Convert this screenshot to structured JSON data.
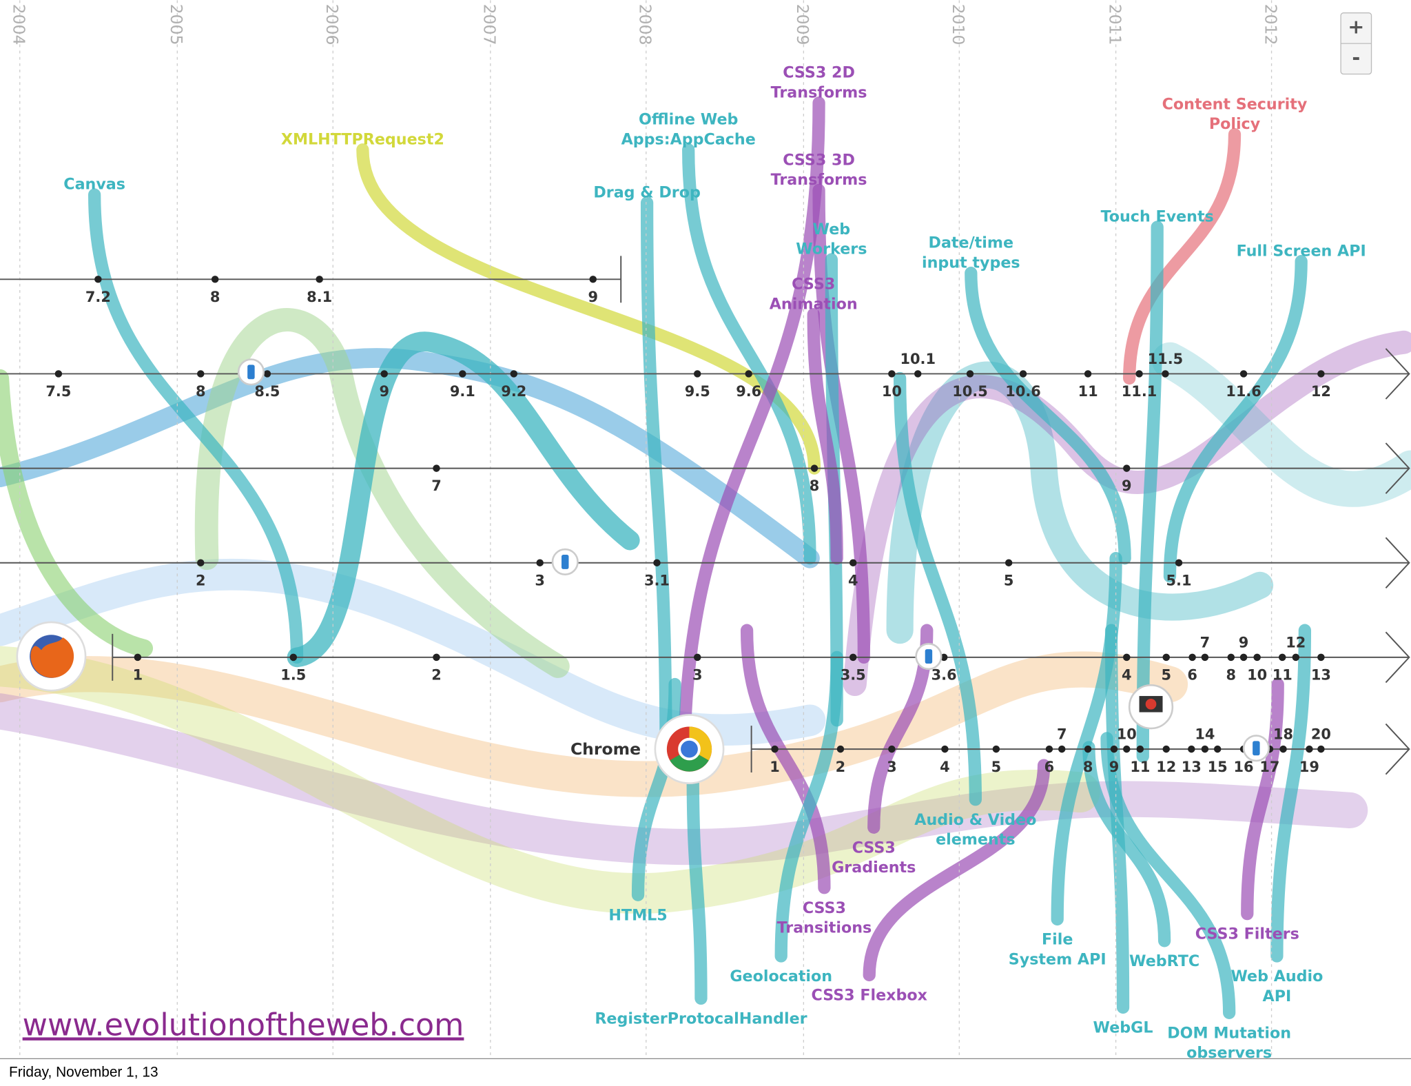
{
  "years": [
    "2004",
    "2005",
    "2006",
    "2007",
    "2008",
    "2009",
    "2010",
    "2011",
    "2012"
  ],
  "timelines": [
    {
      "versions": [
        "7.2",
        "8",
        "8.1",
        "9"
      ]
    },
    {
      "versions": [
        "7.5",
        "8",
        "8.5",
        "9",
        "9.1",
        "9.2",
        "9.5",
        "9.6",
        "10",
        "10.1",
        "10.5",
        "10.6",
        "11",
        "11.1",
        "11.5",
        "11.6",
        "12"
      ]
    },
    {
      "versions": [
        "7",
        "8",
        "9"
      ]
    },
    {
      "versions": [
        "2",
        "3",
        "3.1",
        "4",
        "5",
        "5.1"
      ]
    },
    {
      "versions": [
        "1",
        "1.5",
        "2",
        "3",
        "3.5",
        "3.6",
        "4",
        "5",
        "6",
        "7",
        "8",
        "9",
        "10",
        "11",
        "12",
        "13"
      ]
    },
    {
      "name": "Chrome",
      "versions": [
        "1",
        "2",
        "3",
        "4",
        "5",
        "6",
        "7",
        "8",
        "9",
        "10",
        "11",
        "12",
        "13",
        "14",
        "15",
        "16",
        "17",
        "18",
        "19",
        "20"
      ]
    }
  ],
  "features": [
    {
      "lines": [
        "Canvas"
      ],
      "color": "#3db5c0"
    },
    {
      "lines": [
        "XMLHTTPRequest2"
      ],
      "color": "#d2d83a"
    },
    {
      "lines": [
        "Offline Web",
        "Apps:AppCache"
      ],
      "color": "#3db5c0"
    },
    {
      "lines": [
        "Drag & Drop"
      ],
      "color": "#3db5c0"
    },
    {
      "lines": [
        "CSS3 2D",
        "Transforms"
      ],
      "color": "#9b4fb5"
    },
    {
      "lines": [
        "CSS3 3D",
        "Transforms"
      ],
      "color": "#9b4fb5"
    },
    {
      "lines": [
        "Web",
        "Workers"
      ],
      "color": "#3db5c0"
    },
    {
      "lines": [
        "CSS3",
        "Animation"
      ],
      "color": "#9b4fb5"
    },
    {
      "lines": [
        "Date/time",
        "input types"
      ],
      "color": "#3db5c0"
    },
    {
      "lines": [
        "Content Security",
        "Policy"
      ],
      "color": "#e5707a"
    },
    {
      "lines": [
        "Touch Events"
      ],
      "color": "#3db5c0"
    },
    {
      "lines": [
        "Full Screen API"
      ],
      "color": "#3db5c0"
    },
    {
      "lines": [
        "Audio & Video",
        "elements"
      ],
      "color": "#3db5c0"
    },
    {
      "lines": [
        "CSS3",
        "Gradients"
      ],
      "color": "#9b4fb5"
    },
    {
      "lines": [
        "HTML5"
      ],
      "color": "#3db5c0"
    },
    {
      "lines": [
        "CSS3",
        "Transitions"
      ],
      "color": "#9b4fb5"
    },
    {
      "lines": [
        "Geolocation"
      ],
      "color": "#3db5c0"
    },
    {
      "lines": [
        "CSS3 Flexbox"
      ],
      "color": "#9b4fb5"
    },
    {
      "lines": [
        "RegisterProtocalHandler"
      ],
      "color": "#3db5c0"
    },
    {
      "lines": [
        "File",
        "System API"
      ],
      "color": "#3db5c0"
    },
    {
      "lines": [
        "WebRTC"
      ],
      "color": "#3db5c0"
    },
    {
      "lines": [
        "WebGL"
      ],
      "color": "#3db5c0"
    },
    {
      "lines": [
        "DOM Mutation",
        "observers"
      ],
      "color": "#3db5c0"
    },
    {
      "lines": [
        "CSS3 Filters"
      ],
      "color": "#9b4fb5"
    },
    {
      "lines": [
        "Web Audio",
        "API"
      ],
      "color": "#3db5c0"
    }
  ],
  "zoom": {
    "in": "+",
    "out": "-"
  },
  "footer": {
    "url": "www.evolutionoftheweb.com",
    "date": "Friday, November 1, 13"
  }
}
